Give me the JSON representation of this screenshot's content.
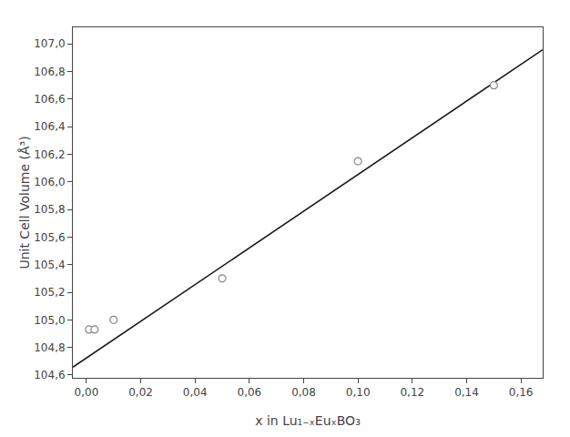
{
  "chart_data": {
    "type": "scatter",
    "xlabel": "x in Lu₁₋ₓEuₓBO₃",
    "ylabel": "Unit Cell Volume (Å³)",
    "series": [
      {
        "type": "scatter",
        "marker": "open circle",
        "color": "#888888",
        "x": [
          0.001,
          0.003,
          0.01,
          0.05,
          0.1,
          0.15
        ],
        "values": [
          104.93,
          104.93,
          105.0,
          105.3,
          106.15,
          106.7
        ]
      },
      {
        "type": "line",
        "line_style": "solid",
        "color": "#1a1a1a",
        "x": [
          -0.005,
          0.168
        ],
        "values": [
          104.657,
          106.958
        ]
      }
    ],
    "xlim": [
      -0.005,
      0.168
    ],
    "ylim": [
      104.58,
      107.12
    ],
    "xticks": [
      {
        "value": 0.0,
        "label": "0,00"
      },
      {
        "value": 0.02,
        "label": "0,02"
      },
      {
        "value": 0.04,
        "label": "0,04"
      },
      {
        "value": 0.06,
        "label": "0,06"
      },
      {
        "value": 0.08,
        "label": "0,08"
      },
      {
        "value": 0.1,
        "label": "0,10"
      },
      {
        "value": 0.12,
        "label": "0,12"
      },
      {
        "value": 0.14,
        "label": "0,14"
      },
      {
        "value": 0.16,
        "label": "0,16"
      }
    ],
    "yticks": [
      {
        "value": 104.6,
        "label": "104,6"
      },
      {
        "value": 104.8,
        "label": "104,8"
      },
      {
        "value": 105.0,
        "label": "105,0"
      },
      {
        "value": 105.2,
        "label": "105,2"
      },
      {
        "value": 105.4,
        "label": "105,4"
      },
      {
        "value": 105.6,
        "label": "105,6"
      },
      {
        "value": 105.8,
        "label": "105,8"
      },
      {
        "value": 106.0,
        "label": "106,0"
      },
      {
        "value": 106.2,
        "label": "106,2"
      },
      {
        "value": 106.4,
        "label": "106,4"
      },
      {
        "value": 106.6,
        "label": "106,6"
      },
      {
        "value": 106.8,
        "label": "106,8"
      },
      {
        "value": 107.0,
        "label": "107,0"
      }
    ],
    "grid": false
  }
}
